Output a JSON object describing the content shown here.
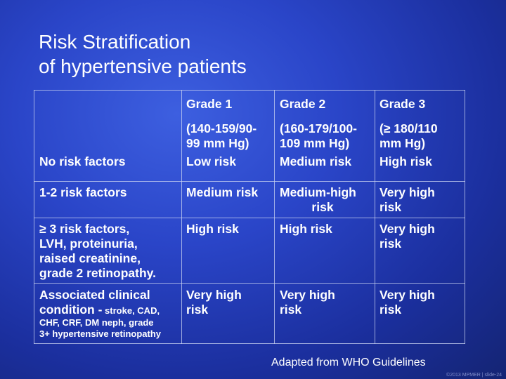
{
  "title": {
    "line1": "Risk Stratification",
    "line2": "of hypertensive patients"
  },
  "headers": {
    "g1": {
      "name": "Grade 1",
      "range1": "(140-159/90-",
      "range2": "99 mm Hg)"
    },
    "g2": {
      "name": "Grade 2",
      "range1": "(160-179/100-",
      "range2": "109 mm Hg)"
    },
    "g3": {
      "name": "Grade 3",
      "range1": "(≥ 180/110",
      "range2": "mm Hg)"
    }
  },
  "rows": [
    {
      "label1": "No risk factors",
      "g1": "Low risk",
      "g2": "Medium risk",
      "g3": "High risk"
    },
    {
      "label1": "1-2 risk factors",
      "g1": "Medium risk",
      "g2a": "Medium-high",
      "g2b": "risk",
      "g3a": "Very high",
      "g3b": "risk"
    },
    {
      "label1": "≥ 3 risk factors,",
      "label2": "LVH, proteinuria,",
      "label3": "raised creatinine,",
      "label4": "grade 2 retinopathy.",
      "g1": "High risk",
      "g2": "High risk",
      "g3a": "Very high",
      "g3b": "risk"
    },
    {
      "label1": "Associated clinical",
      "label2": "condition -",
      "label2small": " stroke, CAD,",
      "label3": "CHF, CRF, DM neph, grade",
      "label4": "3+ hypertensive retinopathy",
      "g1a": "Very high",
      "g1b": "risk",
      "g2a": "Very high",
      "g2b": "risk",
      "g3a": "Very high",
      "g3b": "risk"
    }
  ],
  "attribution": "Adapted from WHO Guidelines",
  "copyright": "©2013 MPMER | slide-24"
}
